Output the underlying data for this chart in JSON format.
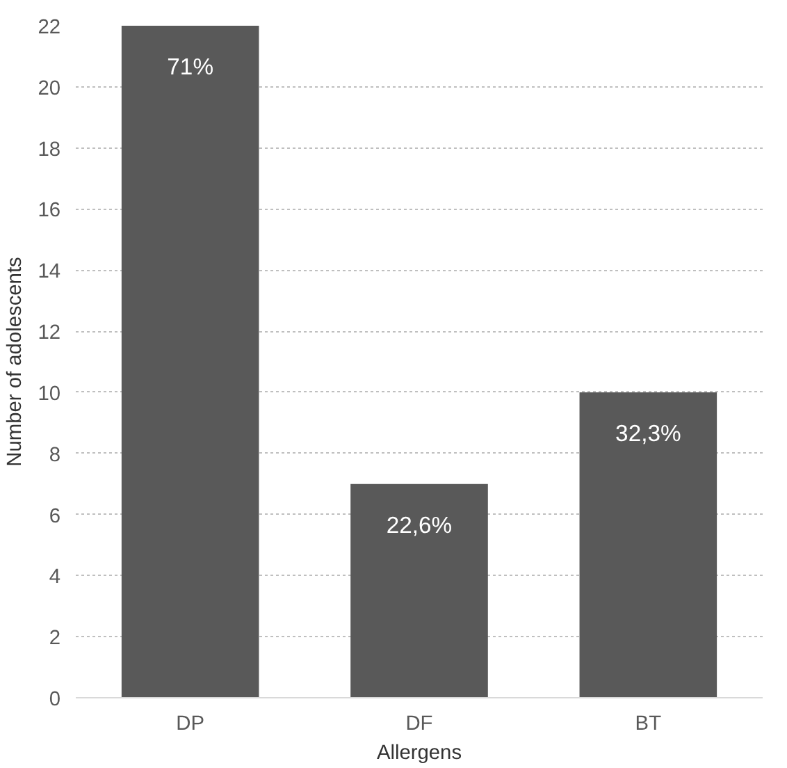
{
  "chart_data": {
    "type": "bar",
    "xlabel": "Allergens",
    "ylabel": "Number of adolescents",
    "categories": [
      "DP",
      "DF",
      "BT"
    ],
    "values": [
      22,
      7,
      10
    ],
    "annotations": [
      {
        "text": "71%",
        "x": "DP",
        "y": 22
      },
      {
        "text": "22,6%",
        "x": "DF",
        "y": 7
      },
      {
        "text": "32,3%",
        "x": "BT",
        "y": 10
      }
    ],
    "color": "#595959",
    "ylim": [
      0,
      22
    ],
    "yticks": [
      0,
      2,
      4,
      6,
      8,
      10,
      12,
      14,
      16,
      18,
      20,
      22
    ],
    "grid": "y"
  }
}
